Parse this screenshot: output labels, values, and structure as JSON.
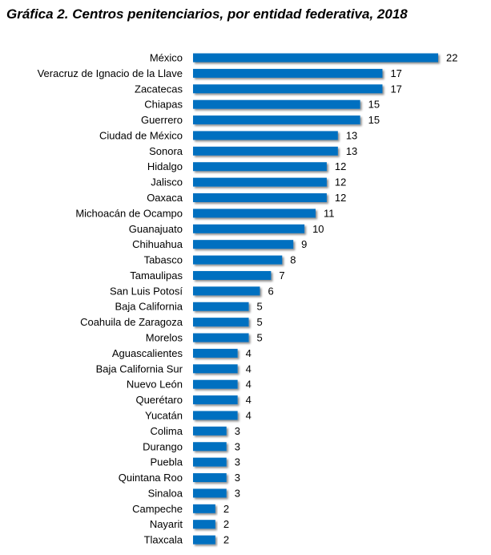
{
  "title": "Gráfica 2. Centros penitenciarios, por entidad federativa, 2018",
  "chart_data": {
    "type": "bar",
    "orientation": "horizontal",
    "title": "Gráfica 2. Centros penitenciarios, por entidad federativa, 2018",
    "xlabel": "",
    "ylabel": "",
    "xlim": [
      0,
      22
    ],
    "grid": false,
    "color": "#0070C0",
    "categories": [
      "México",
      "Veracruz de Ignacio de la Llave",
      "Zacatecas",
      "Chiapas",
      "Guerrero",
      "Ciudad de México",
      "Sonora",
      "Hidalgo",
      "Jalisco",
      "Oaxaca",
      "Michoacán de Ocampo",
      "Guanajuato",
      "Chihuahua",
      "Tabasco",
      "Tamaulipas",
      "San Luis Potosí",
      "Baja California",
      "Coahuila de Zaragoza",
      "Morelos",
      "Aguascalientes",
      "Baja California Sur",
      "Nuevo León",
      "Querétaro",
      "Yucatán",
      "Colima",
      "Durango",
      "Puebla",
      "Quintana Roo",
      "Sinaloa",
      "Campeche",
      "Nayarit",
      "Tlaxcala"
    ],
    "values": [
      22,
      17,
      17,
      15,
      15,
      13,
      13,
      12,
      12,
      12,
      11,
      10,
      9,
      8,
      7,
      6,
      5,
      5,
      5,
      4,
      4,
      4,
      4,
      4,
      3,
      3,
      3,
      3,
      3,
      2,
      2,
      2
    ]
  }
}
